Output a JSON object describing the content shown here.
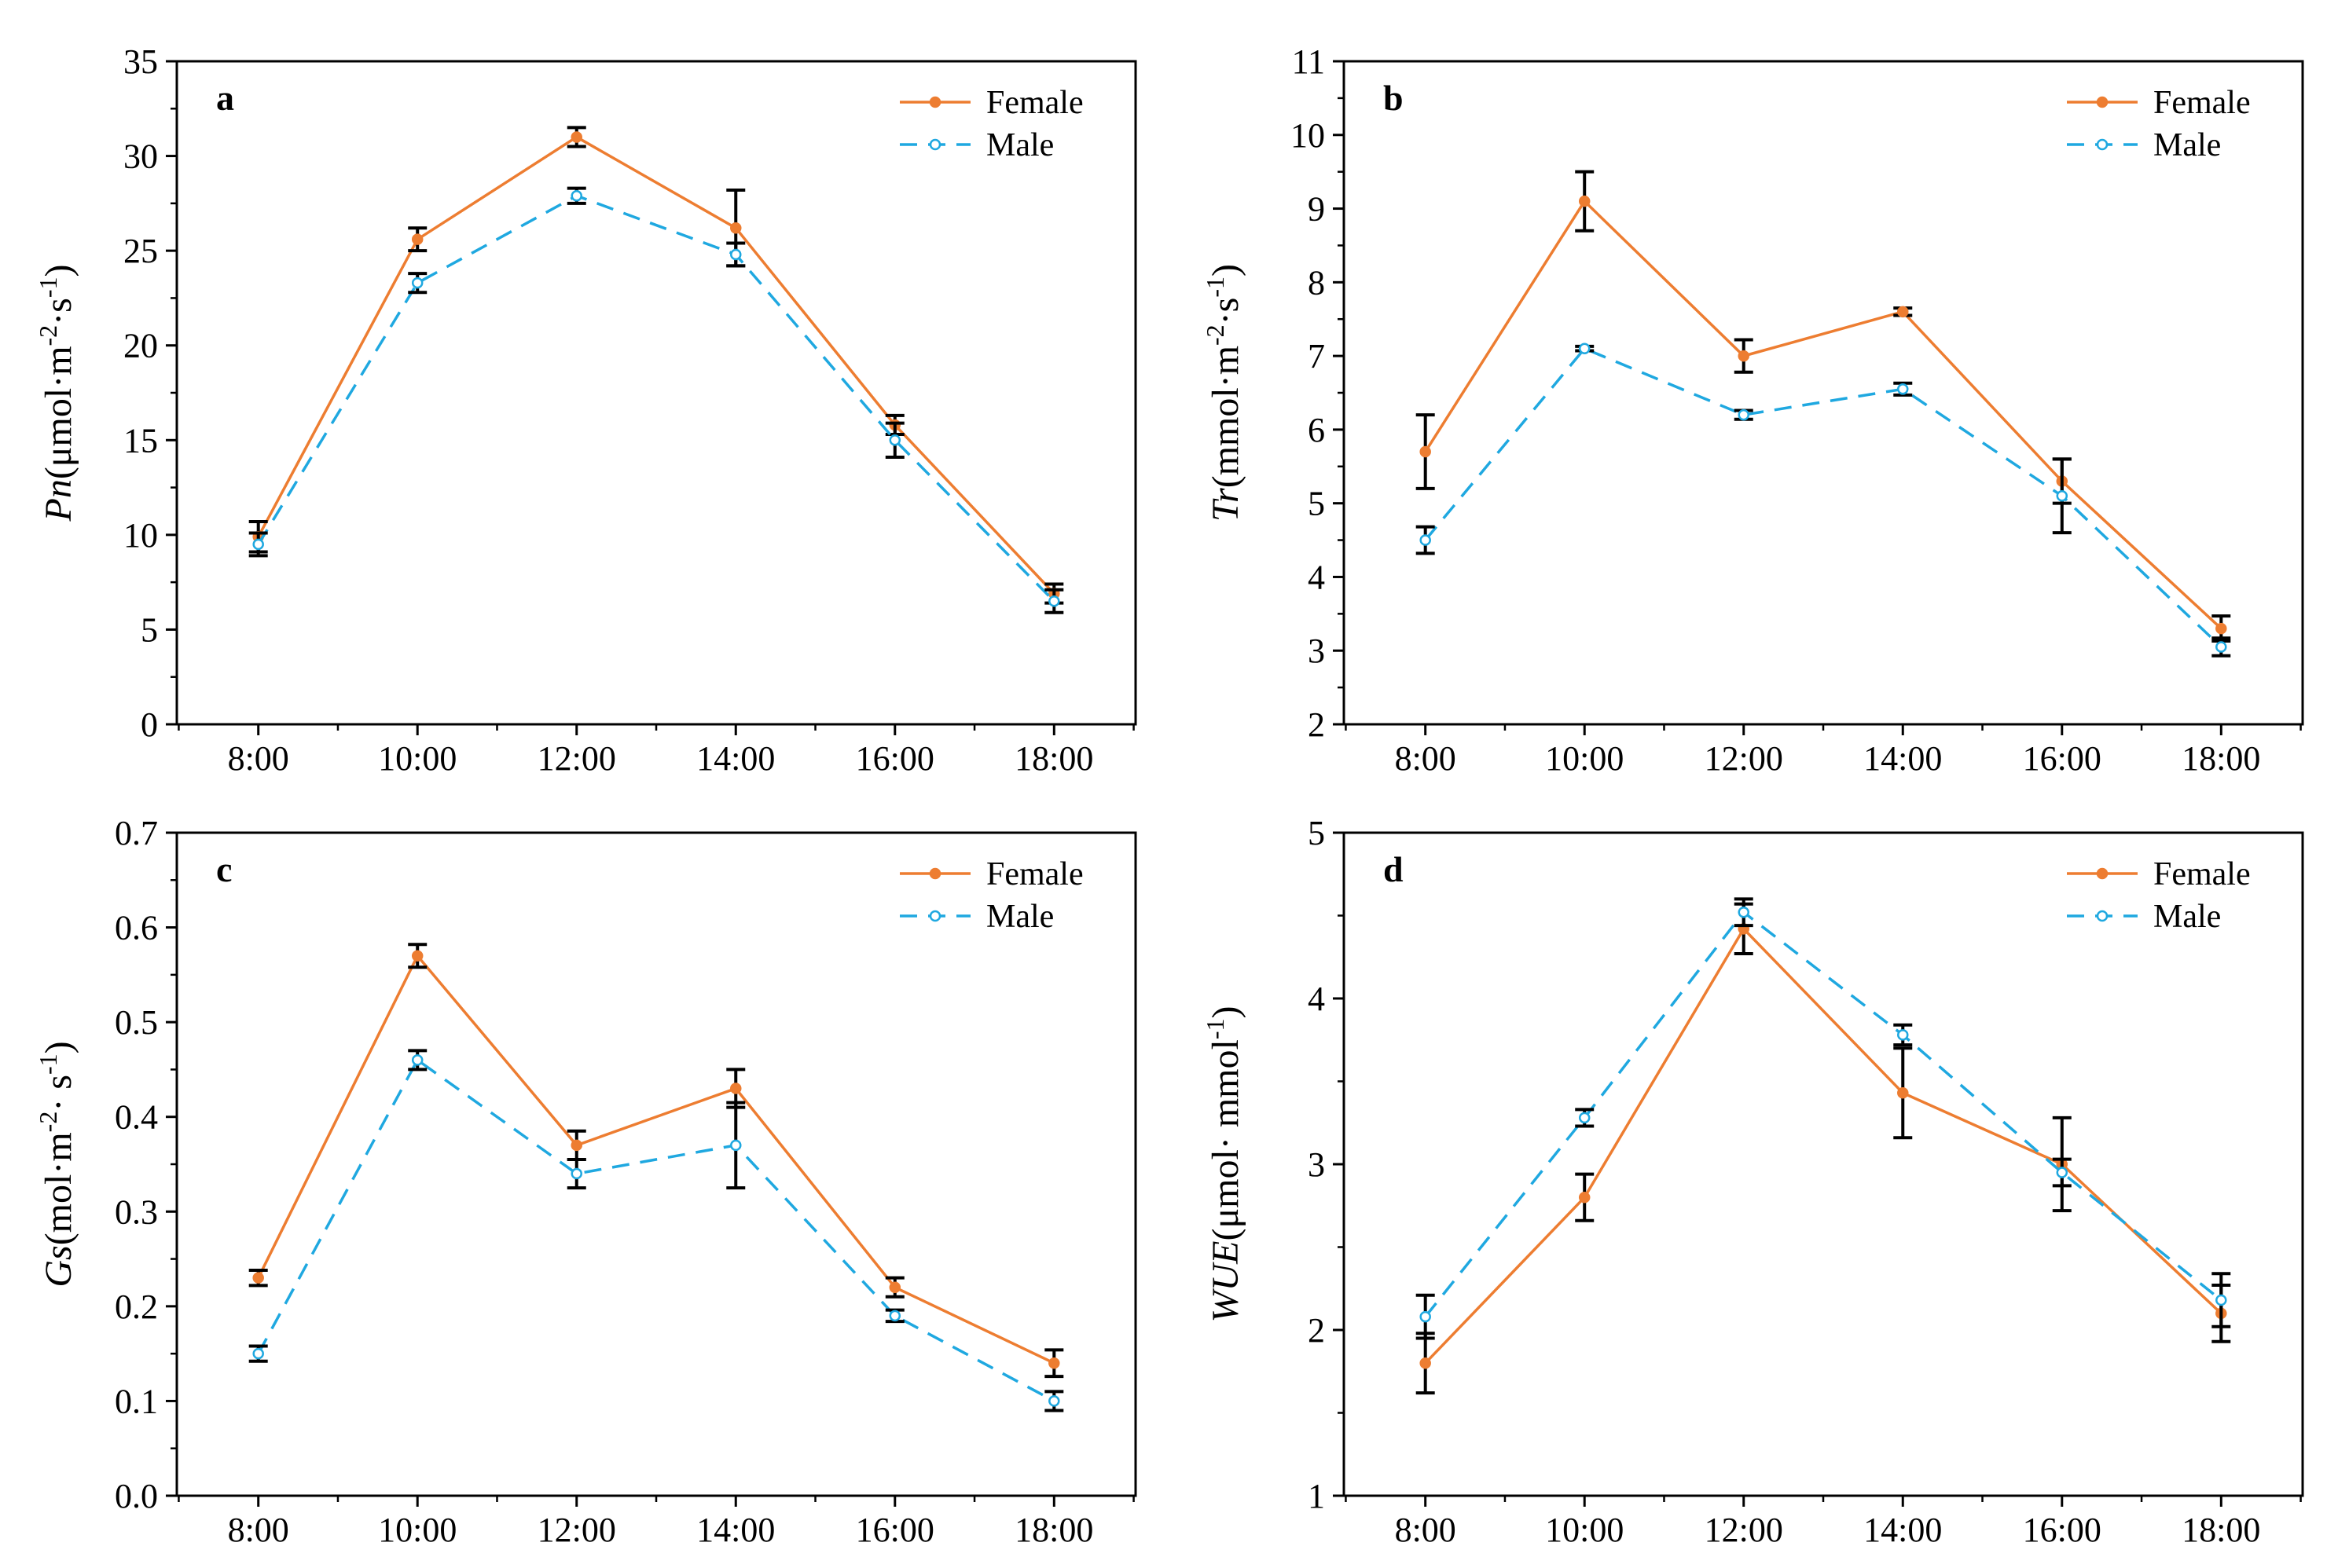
{
  "chart_data": [
    {
      "type": "line",
      "panel": "a",
      "ylabel_var": "Pn",
      "ylabel_unit": "(μmol·m-2·s-1)",
      "ylim": [
        0,
        35
      ],
      "yticks": [
        0,
        5,
        10,
        15,
        20,
        25,
        30,
        35
      ],
      "categories": [
        "8:00",
        "10:00",
        "12:00",
        "14:00",
        "16:00",
        "18:00"
      ],
      "legend_position": "top-right",
      "series": [
        {
          "name": "Female",
          "color": "#ed7d31",
          "dash": "solid",
          "marker": "filled-circle",
          "values": [
            9.9,
            25.6,
            31.0,
            26.2,
            15.8,
            6.9
          ],
          "errors": [
            0.8,
            0.6,
            0.5,
            2.0,
            0.5,
            0.5
          ]
        },
        {
          "name": "Male",
          "color": "#1fa8e0",
          "dash": "dashed",
          "marker": "open-circle",
          "values": [
            9.5,
            23.3,
            27.9,
            24.8,
            15.0,
            6.5
          ],
          "errors": [
            0.6,
            0.5,
            0.4,
            0.6,
            0.9,
            0.6
          ]
        }
      ]
    },
    {
      "type": "line",
      "panel": "b",
      "ylabel_var": "Tr",
      "ylabel_unit": "(mmol·m-2·s-1)",
      "ylim": [
        2,
        11
      ],
      "yticks": [
        2,
        3,
        4,
        5,
        6,
        7,
        8,
        9,
        10,
        11
      ],
      "categories": [
        "8:00",
        "10:00",
        "12:00",
        "14:00",
        "16:00",
        "18:00"
      ],
      "legend_position": "top-right",
      "series": [
        {
          "name": "Female",
          "color": "#ed7d31",
          "dash": "solid",
          "marker": "filled-circle",
          "values": [
            5.7,
            9.1,
            7.0,
            7.6,
            5.3,
            3.3
          ],
          "errors": [
            0.5,
            0.4,
            0.22,
            0.05,
            0.3,
            0.17
          ]
        },
        {
          "name": "Male",
          "color": "#1fa8e0",
          "dash": "dashed",
          "marker": "open-circle",
          "values": [
            4.5,
            7.1,
            6.2,
            6.55,
            5.1,
            3.05
          ],
          "errors": [
            0.18,
            0.03,
            0.06,
            0.08,
            0.5,
            0.12
          ]
        }
      ]
    },
    {
      "type": "line",
      "panel": "c",
      "ylabel_var": "Gs",
      "ylabel_unit": "(mol·m-2· s-1)",
      "ylim": [
        0.0,
        0.7
      ],
      "yticks": [
        0.0,
        0.1,
        0.2,
        0.3,
        0.4,
        0.5,
        0.6,
        0.7
      ],
      "categories": [
        "8:00",
        "10:00",
        "12:00",
        "14:00",
        "16:00",
        "18:00"
      ],
      "legend_position": "top-right",
      "series": [
        {
          "name": "Female",
          "color": "#ed7d31",
          "dash": "solid",
          "marker": "filled-circle",
          "values": [
            0.23,
            0.57,
            0.37,
            0.43,
            0.22,
            0.14
          ],
          "errors": [
            0.008,
            0.012,
            0.015,
            0.02,
            0.01,
            0.014
          ]
        },
        {
          "name": "Male",
          "color": "#1fa8e0",
          "dash": "dashed",
          "marker": "open-circle",
          "values": [
            0.15,
            0.46,
            0.34,
            0.37,
            0.19,
            0.1
          ],
          "errors": [
            0.008,
            0.01,
            0.015,
            0.045,
            0.006,
            0.01
          ]
        }
      ]
    },
    {
      "type": "line",
      "panel": "d",
      "ylabel_var": "WUE",
      "ylabel_unit": "(μmol· mmol-1)",
      "ylim": [
        1,
        5
      ],
      "yticks": [
        1,
        2,
        3,
        4,
        5
      ],
      "categories": [
        "8:00",
        "10:00",
        "12:00",
        "14:00",
        "16:00",
        "18:00"
      ],
      "legend_position": "top-right",
      "series": [
        {
          "name": "Female",
          "color": "#ed7d31",
          "dash": "solid",
          "marker": "filled-circle",
          "values": [
            1.8,
            2.8,
            4.42,
            3.43,
            3.0,
            2.1
          ],
          "errors": [
            0.18,
            0.14,
            0.15,
            0.27,
            0.28,
            0.17
          ]
        },
        {
          "name": "Male",
          "color": "#1fa8e0",
          "dash": "dashed",
          "marker": "open-circle",
          "values": [
            2.08,
            3.28,
            4.52,
            3.78,
            2.95,
            2.18
          ],
          "errors": [
            0.13,
            0.05,
            0.08,
            0.06,
            0.08,
            0.16
          ]
        }
      ]
    }
  ]
}
